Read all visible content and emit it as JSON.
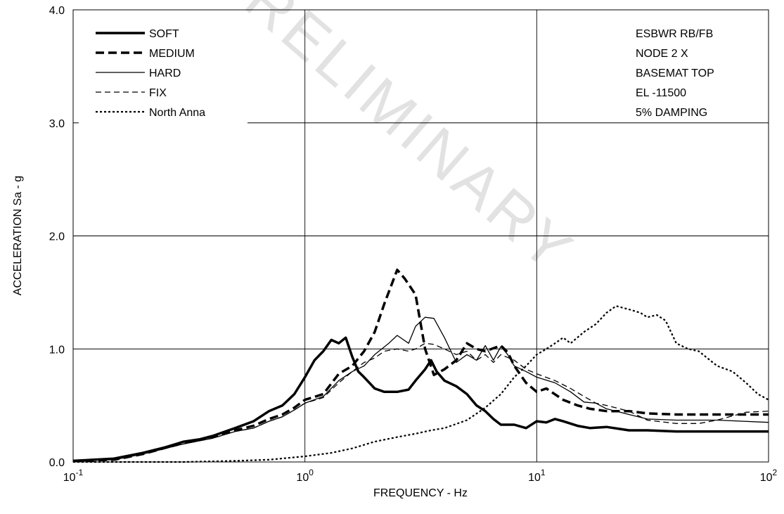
{
  "chart_data": {
    "type": "line",
    "xlabel": "FREQUENCY - Hz",
    "ylabel": "ACCELERATION Sa - g",
    "x_scale": "log",
    "xlim": [
      0.1,
      100
    ],
    "ylim": [
      0,
      4
    ],
    "x_ticks": [
      {
        "base": "10",
        "exp": "-1"
      },
      {
        "base": "10",
        "exp": "0"
      },
      {
        "base": "10",
        "exp": "1"
      },
      {
        "base": "10",
        "exp": "2"
      }
    ],
    "y_ticks": [
      "0.0",
      "1.0",
      "2.0",
      "3.0",
      "4.0"
    ],
    "grid": true,
    "legend_position": "top-left",
    "watermark": "PRELIMINARY",
    "annotation_lines": [
      "ESBWR RB/FB",
      "NODE 2 X",
      "BASEMAT TOP",
      "EL -11500",
      "5% DAMPING"
    ],
    "series": [
      {
        "name": "SOFT",
        "style": "thick-solid",
        "points": [
          [
            0.1,
            0.01
          ],
          [
            0.15,
            0.03
          ],
          [
            0.2,
            0.08
          ],
          [
            0.25,
            0.13
          ],
          [
            0.3,
            0.18
          ],
          [
            0.35,
            0.2
          ],
          [
            0.4,
            0.23
          ],
          [
            0.5,
            0.3
          ],
          [
            0.6,
            0.36
          ],
          [
            0.7,
            0.45
          ],
          [
            0.8,
            0.5
          ],
          [
            0.9,
            0.6
          ],
          [
            1.0,
            0.75
          ],
          [
            1.1,
            0.9
          ],
          [
            1.2,
            0.98
          ],
          [
            1.3,
            1.08
          ],
          [
            1.4,
            1.05
          ],
          [
            1.5,
            1.1
          ],
          [
            1.6,
            0.93
          ],
          [
            1.7,
            0.8
          ],
          [
            1.8,
            0.75
          ],
          [
            2.0,
            0.65
          ],
          [
            2.2,
            0.62
          ],
          [
            2.5,
            0.62
          ],
          [
            2.8,
            0.64
          ],
          [
            3.0,
            0.72
          ],
          [
            3.3,
            0.82
          ],
          [
            3.5,
            0.9
          ],
          [
            3.7,
            0.8
          ],
          [
            4.0,
            0.72
          ],
          [
            4.5,
            0.67
          ],
          [
            5.0,
            0.6
          ],
          [
            5.5,
            0.5
          ],
          [
            6.0,
            0.45
          ],
          [
            6.5,
            0.38
          ],
          [
            7.0,
            0.33
          ],
          [
            8.0,
            0.33
          ],
          [
            9.0,
            0.3
          ],
          [
            10.0,
            0.36
          ],
          [
            11.0,
            0.35
          ],
          [
            12.0,
            0.38
          ],
          [
            13.0,
            0.36
          ],
          [
            15.0,
            0.32
          ],
          [
            17.0,
            0.3
          ],
          [
            20.0,
            0.31
          ],
          [
            25.0,
            0.28
          ],
          [
            30.0,
            0.28
          ],
          [
            40.0,
            0.27
          ],
          [
            60.0,
            0.27
          ],
          [
            100.0,
            0.27
          ]
        ]
      },
      {
        "name": "MEDIUM",
        "style": "thick-dashed",
        "points": [
          [
            0.1,
            0.01
          ],
          [
            0.15,
            0.02
          ],
          [
            0.2,
            0.07
          ],
          [
            0.3,
            0.17
          ],
          [
            0.4,
            0.22
          ],
          [
            0.5,
            0.28
          ],
          [
            0.6,
            0.32
          ],
          [
            0.7,
            0.38
          ],
          [
            0.8,
            0.42
          ],
          [
            0.9,
            0.48
          ],
          [
            1.0,
            0.55
          ],
          [
            1.2,
            0.6
          ],
          [
            1.4,
            0.78
          ],
          [
            1.6,
            0.85
          ],
          [
            1.8,
            0.98
          ],
          [
            2.0,
            1.15
          ],
          [
            2.2,
            1.4
          ],
          [
            2.5,
            1.7
          ],
          [
            2.7,
            1.62
          ],
          [
            3.0,
            1.48
          ],
          [
            3.3,
            1.0
          ],
          [
            3.6,
            0.77
          ],
          [
            4.0,
            0.82
          ],
          [
            4.5,
            0.9
          ],
          [
            5.0,
            1.05
          ],
          [
            5.5,
            1.0
          ],
          [
            6.0,
            0.98
          ],
          [
            7.0,
            1.03
          ],
          [
            7.5,
            0.97
          ],
          [
            8.0,
            0.85
          ],
          [
            9.0,
            0.7
          ],
          [
            10.0,
            0.62
          ],
          [
            11.0,
            0.65
          ],
          [
            13.0,
            0.55
          ],
          [
            15.0,
            0.5
          ],
          [
            17.0,
            0.47
          ],
          [
            20.0,
            0.45
          ],
          [
            25.0,
            0.45
          ],
          [
            30.0,
            0.43
          ],
          [
            40.0,
            0.42
          ],
          [
            60.0,
            0.42
          ],
          [
            100.0,
            0.42
          ]
        ]
      },
      {
        "name": "HARD",
        "style": "thin-solid",
        "points": [
          [
            0.1,
            0.01
          ],
          [
            0.15,
            0.02
          ],
          [
            0.2,
            0.07
          ],
          [
            0.3,
            0.16
          ],
          [
            0.4,
            0.21
          ],
          [
            0.5,
            0.27
          ],
          [
            0.6,
            0.3
          ],
          [
            0.7,
            0.36
          ],
          [
            0.8,
            0.4
          ],
          [
            0.9,
            0.46
          ],
          [
            1.0,
            0.52
          ],
          [
            1.2,
            0.58
          ],
          [
            1.4,
            0.72
          ],
          [
            1.6,
            0.8
          ],
          [
            1.8,
            0.85
          ],
          [
            2.0,
            0.95
          ],
          [
            2.3,
            1.05
          ],
          [
            2.5,
            1.12
          ],
          [
            2.8,
            1.05
          ],
          [
            3.0,
            1.2
          ],
          [
            3.3,
            1.28
          ],
          [
            3.6,
            1.27
          ],
          [
            4.0,
            1.1
          ],
          [
            4.5,
            0.88
          ],
          [
            5.0,
            0.95
          ],
          [
            5.5,
            0.9
          ],
          [
            6.0,
            1.03
          ],
          [
            6.5,
            0.9
          ],
          [
            7.0,
            1.02
          ],
          [
            7.5,
            0.95
          ],
          [
            8.0,
            0.85
          ],
          [
            9.0,
            0.8
          ],
          [
            10.0,
            0.75
          ],
          [
            12.0,
            0.7
          ],
          [
            14.0,
            0.62
          ],
          [
            16.0,
            0.53
          ],
          [
            18.0,
            0.52
          ],
          [
            20.0,
            0.47
          ],
          [
            25.0,
            0.42
          ],
          [
            30.0,
            0.38
          ],
          [
            40.0,
            0.37
          ],
          [
            60.0,
            0.37
          ],
          [
            100.0,
            0.35
          ]
        ]
      },
      {
        "name": "FIX",
        "style": "thin-dashed",
        "points": [
          [
            0.1,
            0.01
          ],
          [
            0.15,
            0.02
          ],
          [
            0.2,
            0.07
          ],
          [
            0.3,
            0.16
          ],
          [
            0.4,
            0.21
          ],
          [
            0.5,
            0.27
          ],
          [
            0.6,
            0.3
          ],
          [
            0.7,
            0.36
          ],
          [
            0.8,
            0.4
          ],
          [
            0.9,
            0.46
          ],
          [
            1.0,
            0.52
          ],
          [
            1.2,
            0.57
          ],
          [
            1.4,
            0.7
          ],
          [
            1.6,
            0.8
          ],
          [
            1.8,
            0.88
          ],
          [
            2.0,
            0.92
          ],
          [
            2.2,
            0.98
          ],
          [
            2.5,
            1.0
          ],
          [
            2.8,
            0.98
          ],
          [
            3.0,
            1.0
          ],
          [
            3.3,
            1.05
          ],
          [
            3.6,
            1.04
          ],
          [
            4.0,
            1.0
          ],
          [
            4.5,
            0.95
          ],
          [
            5.0,
            0.98
          ],
          [
            5.5,
            0.9
          ],
          [
            6.0,
            0.95
          ],
          [
            6.5,
            0.88
          ],
          [
            7.0,
            0.95
          ],
          [
            8.0,
            0.9
          ],
          [
            9.0,
            0.82
          ],
          [
            10.0,
            0.78
          ],
          [
            12.0,
            0.72
          ],
          [
            14.0,
            0.65
          ],
          [
            16.0,
            0.58
          ],
          [
            18.0,
            0.52
          ],
          [
            20.0,
            0.5
          ],
          [
            25.0,
            0.45
          ],
          [
            30.0,
            0.37
          ],
          [
            40.0,
            0.34
          ],
          [
            50.0,
            0.34
          ],
          [
            60.0,
            0.37
          ],
          [
            80.0,
            0.44
          ],
          [
            100.0,
            0.45
          ]
        ]
      },
      {
        "name": "North Anna",
        "style": "dotted",
        "points": [
          [
            0.1,
            0.0
          ],
          [
            0.2,
            0.0
          ],
          [
            0.3,
            0.0
          ],
          [
            0.5,
            0.01
          ],
          [
            0.7,
            0.02
          ],
          [
            1.0,
            0.05
          ],
          [
            1.3,
            0.08
          ],
          [
            1.6,
            0.12
          ],
          [
            2.0,
            0.18
          ],
          [
            2.5,
            0.22
          ],
          [
            3.0,
            0.25
          ],
          [
            3.5,
            0.28
          ],
          [
            4.0,
            0.3
          ],
          [
            5.0,
            0.37
          ],
          [
            6.0,
            0.48
          ],
          [
            7.0,
            0.6
          ],
          [
            8.0,
            0.75
          ],
          [
            9.0,
            0.85
          ],
          [
            10.0,
            0.95
          ],
          [
            11.0,
            1.0
          ],
          [
            12.0,
            1.05
          ],
          [
            13.0,
            1.1
          ],
          [
            14.0,
            1.05
          ],
          [
            16.0,
            1.15
          ],
          [
            18.0,
            1.22
          ],
          [
            20.0,
            1.32
          ],
          [
            22.0,
            1.38
          ],
          [
            25.0,
            1.35
          ],
          [
            28.0,
            1.32
          ],
          [
            30.0,
            1.28
          ],
          [
            33.0,
            1.3
          ],
          [
            36.0,
            1.25
          ],
          [
            40.0,
            1.05
          ],
          [
            45.0,
            1.0
          ],
          [
            50.0,
            0.98
          ],
          [
            60.0,
            0.85
          ],
          [
            70.0,
            0.8
          ],
          [
            80.0,
            0.7
          ],
          [
            90.0,
            0.6
          ],
          [
            100.0,
            0.55
          ]
        ]
      }
    ]
  }
}
